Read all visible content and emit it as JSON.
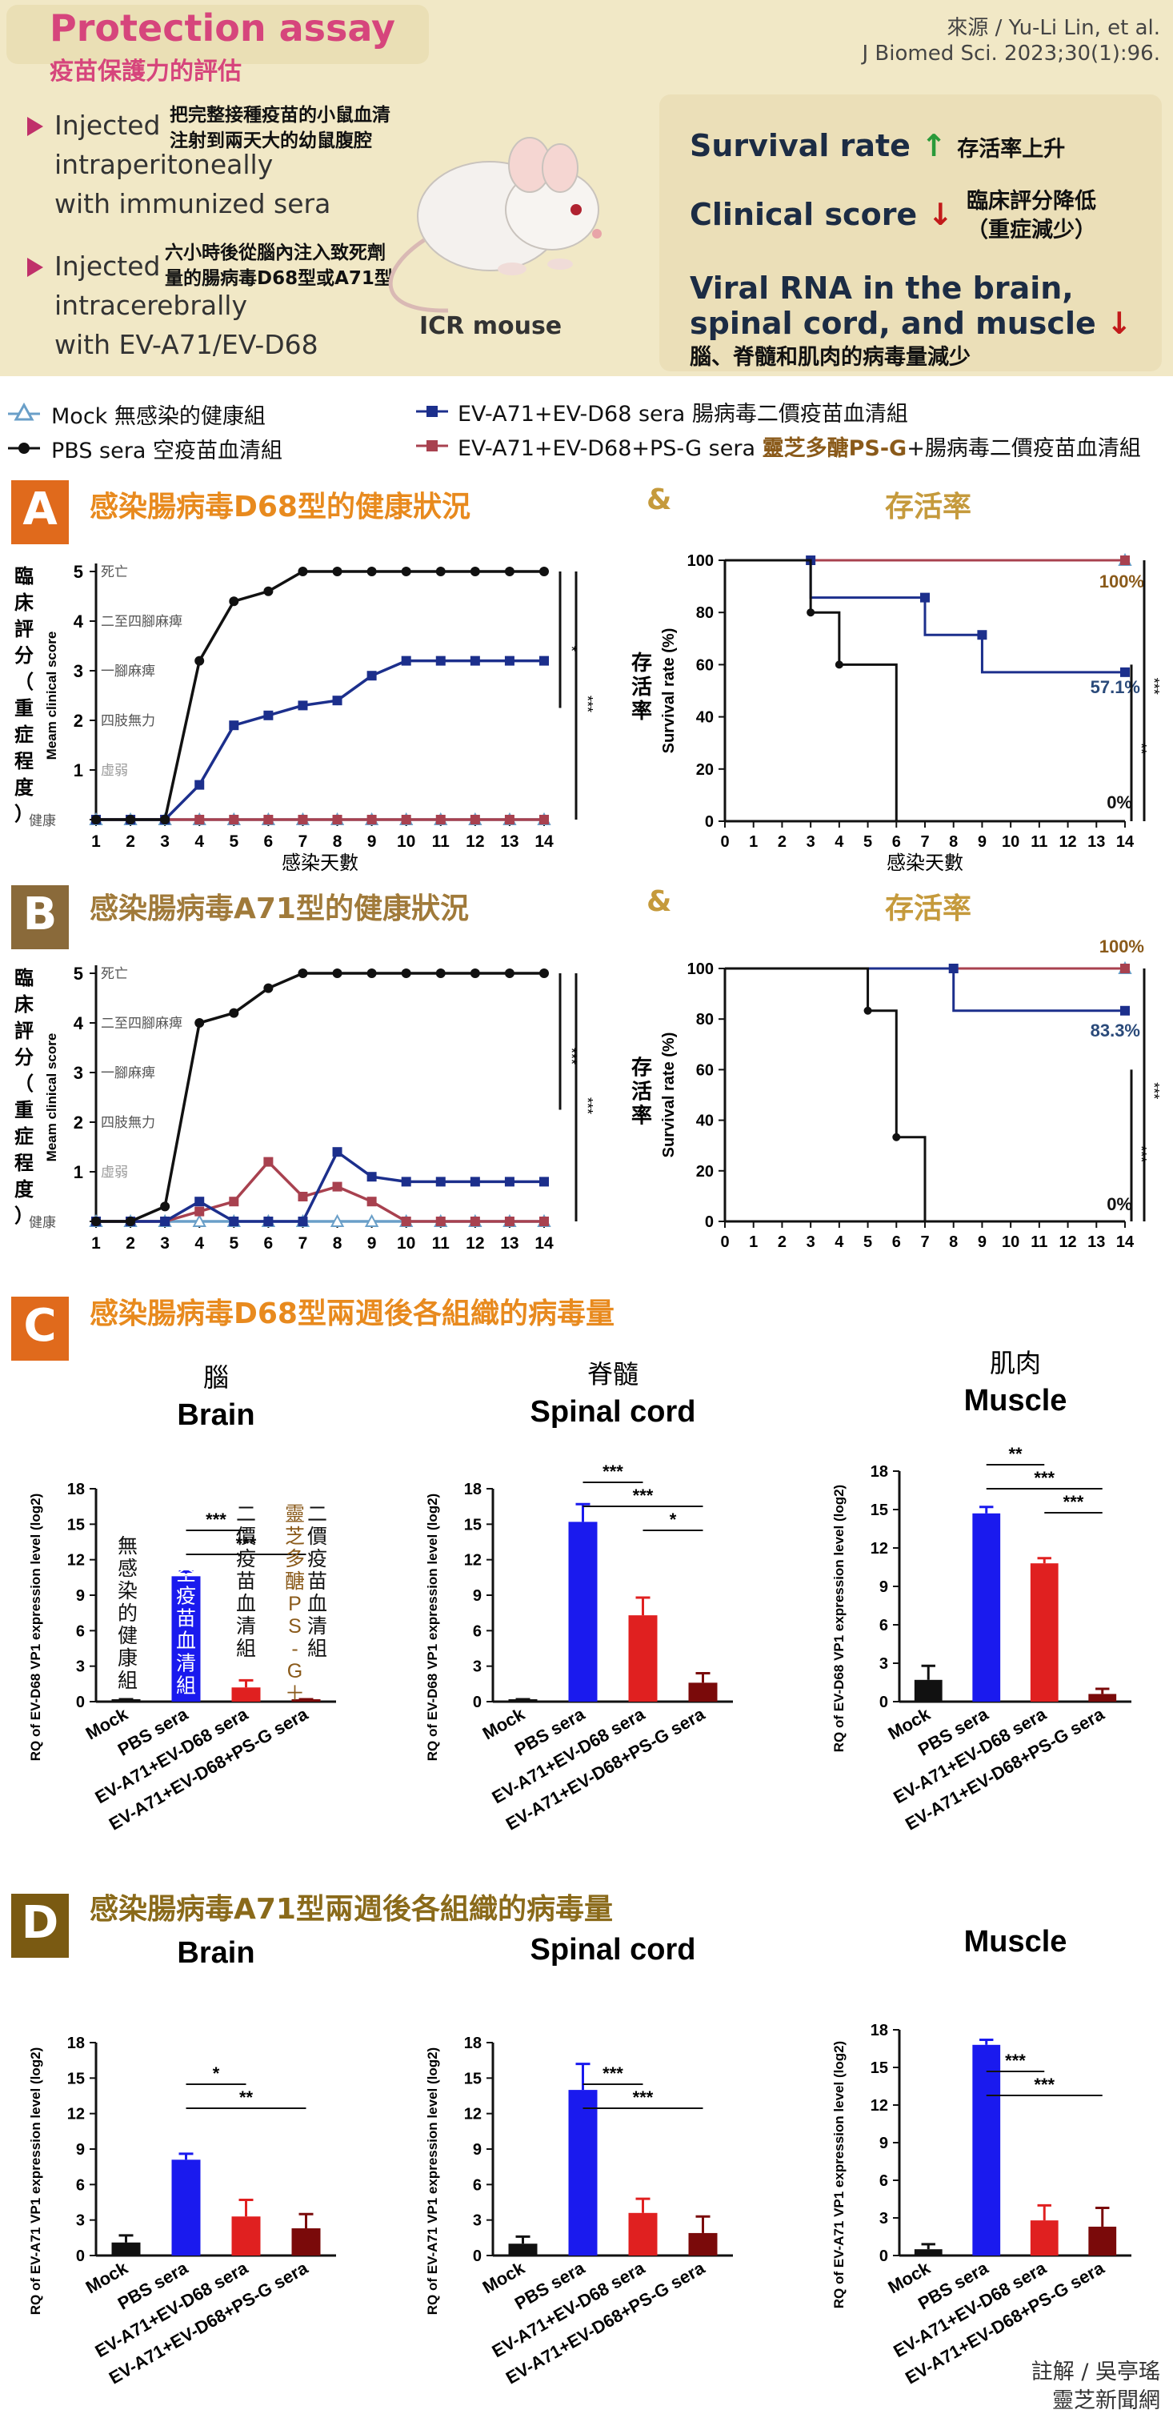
{
  "header": {
    "title": "Protection assay",
    "subtitle": "疫苗保護力的評估",
    "source_line1": "來源 / Yu-Li Lin, et al.",
    "source_line2": "J Biomed Sci. 2023;30(1):96.",
    "step1_en": [
      "Injected",
      "intraperitoneally",
      "with immunized sera"
    ],
    "step1_zh": [
      "把完整接種疫苗的小鼠血清",
      "注射到兩天大的幼鼠腹腔"
    ],
    "step2_en": [
      "Injected",
      "intracerebrally",
      "with EV-A71/EV-D68"
    ],
    "step2_zh": [
      "六小時後從腦內注入致死劑",
      "量的腸病毒D68型或A71型"
    ],
    "mouse_label": "ICR mouse",
    "survival_en": "Survival rate",
    "survival_zh": "存活率上升",
    "clinical_en": "Clinical score",
    "clinical_zh1": "臨床評分降低",
    "clinical_zh2": "（重症減少）",
    "viral_en1": "Viral RNA in the brain,",
    "viral_en2": "spinal cord, and muscle",
    "viral_zh": "腦、脊髓和肌肉的病毒量減少"
  },
  "legend": {
    "mock": "Mock 無感染的健康組",
    "pbs": "PBS sera 空疫苗血清組",
    "d68_prefix": "EV-A71+EV-D68 sera",
    "d68_suffix": "腸病毒二價疫苗血清組",
    "psg_prefix": "EV-A71+EV-D68+PS-G sera",
    "psg_highlight": "靈芝多醣PS-G",
    "psg_suffix": "+腸病毒二價疫苗血清組"
  },
  "colors": {
    "mock": "#6a9fc8",
    "pbs": "#111111",
    "d68": "#1c2f8c",
    "psg": "#a8414f",
    "bar_blue": "#1a1aee",
    "bar_red": "#e02020",
    "bar_dark": "#7a0a0a",
    "title_orange": "#e88a1e",
    "title_gold": "#c59a3c"
  },
  "panels": {
    "A": {
      "letter": "A",
      "title": "感染腸病毒D68型的健康狀況",
      "amp": "&",
      "title2": "存活率"
    },
    "B": {
      "letter": "B",
      "title": "感染腸病毒A71型的健康狀況",
      "amp": "&",
      "title2": "存活率"
    },
    "C": {
      "letter": "C",
      "title": "感染腸病毒D68型兩週後各組織的病毒量"
    },
    "D": {
      "letter": "D",
      "title": "感染腸病毒A71型兩週後各組織的病毒量"
    }
  },
  "clinical_axis": {
    "ylabel_zh": "臨床評分（重症程度）",
    "ylabel_en": "Meam clinical score",
    "levels": [
      "健康",
      "虛弱",
      "四肢無力",
      "一腳麻痺",
      "二至四腳麻痺",
      "死亡"
    ],
    "xlabel": "感染天數"
  },
  "survival_axis": {
    "ylabel_zh": "存活率",
    "ylabel_en": "Survival rate (%)",
    "xlabel": "感染天數"
  },
  "bar_texts": {
    "c_brain_zh": "腦",
    "c_spinal_zh": "脊髓",
    "c_muscle_zh": "肌肉",
    "mock_note": "無感染的健康組",
    "pbs_note": "空疫苗血清組",
    "d68_note": "二價疫苗血清組",
    "psg_note_a": "靈芝多醣PS-G＋",
    "psg_note_b": "二價疫苗血清組"
  },
  "footer": {
    "line1": "註解 / 吳亭瑤",
    "line2": "靈芝新聞網"
  },
  "chart_data": [
    {
      "id": "A-clinical",
      "type": "line",
      "title": "感染腸病毒D68型的健康狀況",
      "xlabel": "感染天數",
      "ylabel": "Meam clinical score",
      "x": [
        1,
        2,
        3,
        4,
        5,
        6,
        7,
        8,
        9,
        10,
        11,
        12,
        13,
        14
      ],
      "ylim": [
        0,
        5
      ],
      "series": [
        {
          "name": "PBS sera",
          "values": [
            0,
            0,
            0,
            3.2,
            4.4,
            4.6,
            5,
            5,
            5,
            5,
            5,
            5,
            5,
            5
          ]
        },
        {
          "name": "EV-A71+EV-D68 sera",
          "values": [
            0,
            0,
            0,
            0.7,
            1.9,
            2.1,
            2.3,
            2.4,
            2.9,
            3.2,
            3.2,
            3.2,
            3.2,
            3.2
          ]
        },
        {
          "name": "EV-A71+EV-D68+PS-G sera",
          "values": [
            0,
            0,
            0,
            0,
            0,
            0,
            0,
            0,
            0,
            0,
            0,
            0,
            0,
            0
          ]
        },
        {
          "name": "Mock",
          "values": [
            0,
            0,
            0,
            0,
            0,
            0,
            0,
            0,
            0,
            0,
            0,
            0,
            0,
            0
          ]
        }
      ],
      "significance": [
        "*",
        "***"
      ]
    },
    {
      "id": "A-survival",
      "type": "line",
      "title": "存活率",
      "xlabel": "感染天數",
      "ylabel": "Survival rate (%)",
      "xlim": [
        0,
        14
      ],
      "ylim": [
        0,
        100
      ],
      "series": [
        {
          "name": "PBS sera",
          "steps": [
            [
              0,
              100
            ],
            [
              3,
              100
            ],
            [
              3,
              80
            ],
            [
              4,
              80
            ],
            [
              4,
              60
            ],
            [
              6,
              60
            ],
            [
              6,
              0
            ]
          ],
          "end_label": "0%"
        },
        {
          "name": "EV-A71+EV-D68 sera",
          "steps": [
            [
              0,
              100
            ],
            [
              3,
              100
            ],
            [
              3,
              85.7
            ],
            [
              7,
              85.7
            ],
            [
              7,
              71.4
            ],
            [
              9,
              71.4
            ],
            [
              9,
              57.1
            ],
            [
              14,
              57.1
            ]
          ],
          "end_label": "57.1%"
        },
        {
          "name": "EV-A71+EV-D68+PS-G sera",
          "steps": [
            [
              0,
              100
            ],
            [
              14,
              100
            ]
          ],
          "end_label": "100%"
        },
        {
          "name": "Mock",
          "steps": [
            [
              0,
              100
            ],
            [
              14,
              100
            ]
          ]
        }
      ],
      "significance": [
        "**",
        "***"
      ]
    },
    {
      "id": "B-clinical",
      "type": "line",
      "title": "感染腸病毒A71型的健康狀況",
      "xlabel": "感染天數",
      "ylabel": "Meam clinical score",
      "x": [
        1,
        2,
        3,
        4,
        5,
        6,
        7,
        8,
        9,
        10,
        11,
        12,
        13,
        14
      ],
      "ylim": [
        0,
        5
      ],
      "series": [
        {
          "name": "PBS sera",
          "values": [
            0,
            0,
            0.3,
            4,
            4.2,
            4.7,
            5,
            5,
            5,
            5,
            5,
            5,
            5,
            5
          ]
        },
        {
          "name": "EV-A71+EV-D68 sera",
          "values": [
            0,
            0,
            0,
            0.4,
            0,
            0,
            0,
            1.4,
            0.9,
            0.8,
            0.8,
            0.8,
            0.8,
            0.8
          ]
        },
        {
          "name": "EV-A71+EV-D68+PS-G sera",
          "values": [
            0,
            0,
            0,
            0.2,
            0.4,
            1.2,
            0.5,
            0.7,
            0.4,
            0,
            0,
            0,
            0,
            0
          ]
        },
        {
          "name": "Mock",
          "values": [
            0,
            0,
            0,
            0,
            0,
            0,
            0,
            0,
            0,
            0,
            0,
            0,
            0,
            0
          ]
        }
      ],
      "significance": [
        "***",
        "***"
      ]
    },
    {
      "id": "B-survival",
      "type": "line",
      "title": "存活率",
      "xlabel": "",
      "ylabel": "Survival rate (%)",
      "xlim": [
        0,
        14
      ],
      "ylim": [
        0,
        100
      ],
      "series": [
        {
          "name": "PBS sera",
          "steps": [
            [
              0,
              100
            ],
            [
              5,
              100
            ],
            [
              5,
              83.3
            ],
            [
              6,
              83.3
            ],
            [
              6,
              33.3
            ],
            [
              7,
              33.3
            ],
            [
              7,
              0
            ]
          ],
          "end_label": "0%"
        },
        {
          "name": "EV-A71+EV-D68 sera",
          "steps": [
            [
              0,
              100
            ],
            [
              8,
              100
            ],
            [
              8,
              83.3
            ],
            [
              14,
              83.3
            ]
          ],
          "end_label": "83.3%"
        },
        {
          "name": "EV-A71+EV-D68+PS-G sera",
          "steps": [
            [
              0,
              100
            ],
            [
              14,
              100
            ]
          ],
          "end_label": "100%"
        },
        {
          "name": "Mock",
          "steps": [
            [
              0,
              100
            ],
            [
              14,
              100
            ]
          ]
        }
      ],
      "significance": [
        "***",
        "***"
      ]
    },
    {
      "id": "C-brain",
      "type": "bar",
      "title": "Brain",
      "ylabel": "RQ of EV-D68 VP1 expression level (log2)",
      "categories": [
        "Mock",
        "PBS sera",
        "EV-A71+EV-D68 sera",
        "EV-A71+EV-D68+PS-G sera"
      ],
      "values": [
        0.1,
        10.6,
        1.2,
        0.1
      ],
      "errors": [
        0.1,
        0.4,
        0.6,
        0.1
      ],
      "ylim": [
        0,
        18
      ],
      "yticks": [
        0,
        3,
        6,
        9,
        12,
        15,
        18
      ],
      "brackets": [
        {
          "from": 1,
          "to": 2,
          "label": "***"
        },
        {
          "from": 1,
          "to": 3,
          "label": "***"
        }
      ]
    },
    {
      "id": "C-spinal",
      "type": "bar",
      "title": "Spinal cord",
      "ylabel": "RQ of EV-D68 VP1 expression level (log2)",
      "categories": [
        "Mock",
        "PBS sera",
        "EV-A71+EV-D68 sera",
        "EV-A71+EV-D68+PS-G sera"
      ],
      "values": [
        0.1,
        15.2,
        7.3,
        1.6
      ],
      "errors": [
        0.1,
        1.5,
        1.5,
        0.8
      ],
      "ylim": [
        0,
        18
      ],
      "yticks": [
        0,
        3,
        6,
        9,
        12,
        15,
        18
      ],
      "brackets": [
        {
          "from": 1,
          "to": 2,
          "label": "***"
        },
        {
          "from": 1,
          "to": 3,
          "label": "***"
        },
        {
          "from": 2,
          "to": 3,
          "label": "*"
        }
      ]
    },
    {
      "id": "C-muscle",
      "type": "bar",
      "title": "Muscle",
      "ylabel": "RQ of EV-D68 VP1 expression level (log2)",
      "categories": [
        "Mock",
        "PBS sera",
        "EV-A71+EV-D68 sera",
        "EV-A71+EV-D68+PS-G sera"
      ],
      "values": [
        1.7,
        14.7,
        10.8,
        0.6
      ],
      "errors": [
        1.1,
        0.5,
        0.4,
        0.4
      ],
      "ylim": [
        0,
        18
      ],
      "yticks": [
        0,
        3,
        6,
        9,
        12,
        15,
        18
      ],
      "brackets": [
        {
          "from": 1,
          "to": 2,
          "label": "**"
        },
        {
          "from": 1,
          "to": 3,
          "label": "***"
        },
        {
          "from": 2,
          "to": 3,
          "label": "***"
        }
      ]
    },
    {
      "id": "D-brain",
      "type": "bar",
      "title": "Brain",
      "ylabel": "RQ of EV-A71 VP1 expression level (log2)",
      "categories": [
        "Mock",
        "PBS sera",
        "EV-A71+EV-D68 sera",
        "EV-A71+EV-D68+PS-G sera"
      ],
      "values": [
        1.1,
        8.1,
        3.3,
        2.3
      ],
      "errors": [
        0.6,
        0.5,
        1.4,
        1.2
      ],
      "ylim": [
        0,
        18
      ],
      "yticks": [
        0,
        3,
        6,
        9,
        12,
        15,
        18
      ],
      "brackets": [
        {
          "from": 1,
          "to": 2,
          "label": "*"
        },
        {
          "from": 1,
          "to": 3,
          "label": "**"
        }
      ]
    },
    {
      "id": "D-spinal",
      "type": "bar",
      "title": "Spinal cord",
      "ylabel": "RQ of EV-A71 VP1 expression level (log2)",
      "categories": [
        "Mock",
        "PBS sera",
        "EV-A71+EV-D68 sera",
        "EV-A71+EV-D68+PS-G sera"
      ],
      "values": [
        1.0,
        14.0,
        3.6,
        1.9
      ],
      "errors": [
        0.6,
        2.2,
        1.2,
        1.4
      ],
      "ylim": [
        0,
        18
      ],
      "yticks": [
        0,
        3,
        6,
        9,
        12,
        15,
        18
      ],
      "brackets": [
        {
          "from": 1,
          "to": 2,
          "label": "***"
        },
        {
          "from": 1,
          "to": 3,
          "label": "***"
        }
      ]
    },
    {
      "id": "D-muscle",
      "type": "bar",
      "title": "Muscle",
      "ylabel": "RQ of EV-A71 VP1 expression level (log2)",
      "categories": [
        "Mock",
        "PBS sera",
        "EV-A71+EV-D68 sera",
        "EV-A71+EV-D68+PS-G sera"
      ],
      "values": [
        0.5,
        16.8,
        2.8,
        2.3
      ],
      "errors": [
        0.4,
        0.4,
        1.2,
        1.5
      ],
      "ylim": [
        0,
        18
      ],
      "yticks": [
        0,
        3,
        6,
        9,
        12,
        15,
        18
      ],
      "brackets": [
        {
          "from": 1,
          "to": 2,
          "label": "***"
        },
        {
          "from": 1,
          "to": 3,
          "label": "***"
        }
      ]
    }
  ]
}
